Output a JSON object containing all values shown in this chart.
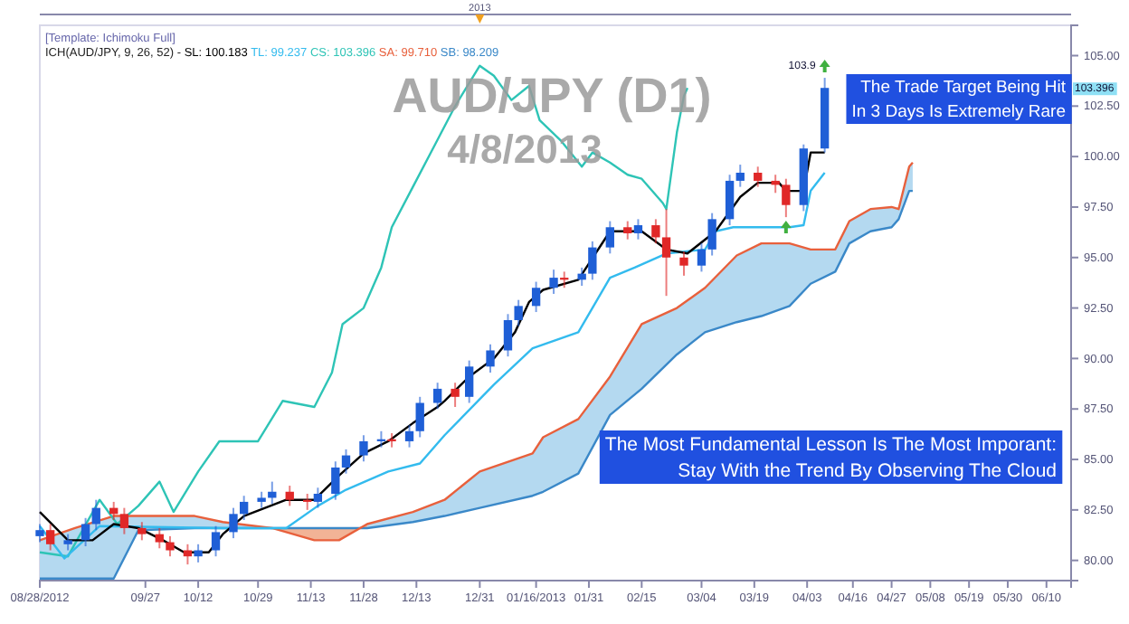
{
  "chart_data": {
    "type": "candlestick",
    "title": "AUD/JPY (D1)",
    "subtitle": "4/8/2013",
    "legend_title": "ICH(AUD/JPY, 9, 26, 52) -",
    "legend": "top left",
    "annotations": [
      "[Template: Ichimoku Full]",
      "2013",
      "The Trade Target Being Hit\nIn 3 Days Is Extremely Rare",
      "The Most Fundamental Lesson Is The Most Imporant:\nStay With the Trend By Observing The Cloud",
      "103.396",
      {
        "text": "103.9",
        "x": "2013-04-08",
        "y": 103.9
      }
    ],
    "xlim": [
      "2012-08-28",
      "2013-06-17"
    ],
    "xticks": [
      {
        "value": "2012-08-28",
        "label": "08/28/2012"
      },
      {
        "value": "2012-09-27",
        "label": "09/27"
      },
      {
        "value": "2012-10-12",
        "label": "10/12"
      },
      {
        "value": "2012-10-29",
        "label": "10/29"
      },
      {
        "value": "2012-11-13",
        "label": "11/13"
      },
      {
        "value": "2012-11-28",
        "label": "11/28"
      },
      {
        "value": "2012-12-13",
        "label": "12/13"
      },
      {
        "value": "2012-12-31",
        "label": "12/31"
      },
      {
        "value": "2013-01-16",
        "label": "01/16/2013"
      },
      {
        "value": "2013-01-31",
        "label": "01/31"
      },
      {
        "value": "2013-02-15",
        "label": "02/15"
      },
      {
        "value": "2013-03-04",
        "label": "03/04"
      },
      {
        "value": "2013-03-19",
        "label": "03/19"
      },
      {
        "value": "2013-04-03",
        "label": "04/03"
      },
      {
        "value": "2013-04-16",
        "label": "04/16"
      },
      {
        "value": "2013-04-27",
        "label": "04/27"
      },
      {
        "value": "2013-05-08",
        "label": "05/08"
      },
      {
        "value": "2013-05-19",
        "label": "05/19"
      },
      {
        "value": "2013-05-30",
        "label": "05/30"
      },
      {
        "value": "2013-06-10",
        "label": "06/10"
      }
    ],
    "ylim": [
      79,
      106.5
    ],
    "yticks": [
      {
        "value": 80,
        "label": "80.00"
      },
      {
        "value": 82.5,
        "label": "82.50"
      },
      {
        "value": 85,
        "label": "85.00"
      },
      {
        "value": 87.5,
        "label": "87.50"
      },
      {
        "value": 90,
        "label": "90.00"
      },
      {
        "value": 92.5,
        "label": "92.50"
      },
      {
        "value": 95,
        "label": "95.00"
      },
      {
        "value": 97.5,
        "label": "97.50"
      },
      {
        "value": 100,
        "label": "100.00"
      },
      {
        "value": 102.5,
        "label": "102.50"
      },
      {
        "value": 105,
        "label": "105.00"
      }
    ],
    "series": [
      {
        "type": "line",
        "name": "SB: 98.209",
        "color": "#3a88c8",
        "x": [
          "2012-08-28",
          "2012-09-07",
          "2012-09-18",
          "2012-09-25",
          "2012-10-11",
          "2012-10-19",
          "2012-11-02",
          "2012-11-14",
          "2012-11-21",
          "2012-11-29",
          "2012-12-12",
          "2012-12-21",
          "2012-12-31",
          "2013-01-15",
          "2013-01-18",
          "2013-01-28",
          "2013-02-06",
          "2013-02-15",
          "2013-02-25",
          "2013-03-05",
          "2013-03-14",
          "2013-03-21",
          "2013-03-29",
          "2013-04-04",
          "2013-04-11",
          "2013-04-15",
          "2013-04-21",
          "2013-04-27",
          "2013-04-29",
          "2013-05-02",
          "2013-05-03"
        ],
        "values": [
          79.1,
          79.1,
          79.1,
          81.5,
          81.6,
          81.6,
          81.6,
          81.6,
          81.6,
          81.6,
          81.9,
          82.2,
          82.6,
          83.2,
          83.4,
          84.3,
          87.2,
          88.5,
          90.2,
          91.3,
          91.8,
          92.1,
          92.6,
          93.7,
          94.3,
          95.7,
          96.3,
          96.5,
          96.9,
          98.3,
          98.3
        ]
      },
      {
        "type": "line",
        "name": "SA: 99.710",
        "color": "#e8603c",
        "x": [
          "2012-08-28",
          "2012-09-07",
          "2012-09-18",
          "2012-09-25",
          "2012-10-11",
          "2012-10-19",
          "2012-11-02",
          "2012-11-14",
          "2012-11-21",
          "2012-11-29",
          "2012-12-12",
          "2012-12-21",
          "2012-12-31",
          "2013-01-15",
          "2013-01-18",
          "2013-01-28",
          "2013-02-06",
          "2013-02-15",
          "2013-02-25",
          "2013-03-05",
          "2013-03-14",
          "2013-03-21",
          "2013-03-29",
          "2013-04-04",
          "2013-04-11",
          "2013-04-15",
          "2013-04-21",
          "2013-04-27",
          "2013-04-29",
          "2013-05-02",
          "2013-05-03"
        ],
        "values": [
          81.0,
          81.6,
          82.2,
          82.2,
          82.2,
          81.9,
          81.6,
          81.0,
          81.0,
          81.8,
          82.4,
          83.0,
          84.4,
          85.3,
          86.1,
          87.0,
          89.1,
          91.7,
          92.5,
          93.5,
          95.1,
          95.7,
          95.7,
          95.4,
          95.4,
          96.8,
          97.4,
          97.5,
          97.4,
          99.5,
          99.7
        ],
        "upper": [
          81.0,
          81.6,
          82.2,
          82.2,
          82.2,
          81.9,
          81.6,
          81.0,
          81.0,
          81.8,
          82.4,
          83.0,
          84.4,
          85.3,
          86.1,
          87.0,
          89.1,
          91.7,
          92.5,
          93.5,
          95.1,
          95.7,
          95.7,
          95.4,
          95.4,
          96.8,
          97.4,
          97.5,
          97.4,
          99.5,
          99.7
        ],
        "lower": [
          79.1,
          79.1,
          79.1,
          81.5,
          81.6,
          81.6,
          81.6,
          81.6,
          81.6,
          81.6,
          81.9,
          82.2,
          82.6,
          83.2,
          83.4,
          84.3,
          87.2,
          88.5,
          90.2,
          91.3,
          91.8,
          92.1,
          92.6,
          93.7,
          94.3,
          95.7,
          96.3,
          96.5,
          96.9,
          98.3,
          98.3
        ]
      },
      {
        "type": "line",
        "name": "CS: 103.396",
        "color": "#2ec4b6",
        "x": [
          "2012-08-28",
          "2012-09-05",
          "2012-09-14",
          "2012-09-19",
          "2012-09-25",
          "2012-10-01",
          "2012-10-05",
          "2012-10-12",
          "2012-10-18",
          "2012-10-23",
          "2012-10-29",
          "2012-11-05",
          "2012-11-14",
          "2012-11-19",
          "2012-11-22",
          "2012-11-28",
          "2012-12-03",
          "2012-12-06",
          "2012-12-12",
          "2012-12-18",
          "2012-12-24",
          "2012-12-31",
          "2013-01-04",
          "2013-01-09",
          "2013-01-14",
          "2013-01-17",
          "2013-01-23",
          "2013-01-29",
          "2013-02-01",
          "2013-02-06",
          "2013-02-11",
          "2013-02-15",
          "2013-02-21",
          "2013-02-22",
          "2013-02-25",
          "2013-02-27",
          "2013-02-28"
        ],
        "values": [
          80.4,
          80.2,
          83.0,
          81.8,
          82.7,
          83.9,
          82.4,
          84.4,
          85.9,
          85.9,
          85.9,
          87.9,
          87.6,
          89.3,
          91.7,
          92.5,
          94.5,
          96.5,
          98.5,
          100.5,
          102.5,
          104.5,
          104.0,
          102.8,
          103.5,
          101.8,
          100.8,
          99.5,
          100.2,
          99.7,
          99.1,
          98.9,
          97.7,
          97.4,
          101.2,
          103.0,
          103.4
        ]
      },
      {
        "type": "line",
        "name": "TL: 99.237",
        "color": "#33bbee",
        "x": [
          "2012-08-28",
          "2012-09-04",
          "2012-09-14",
          "2012-10-19",
          "2012-11-06",
          "2012-11-15",
          "2012-11-23",
          "2012-12-05",
          "2012-12-14",
          "2012-12-21",
          "2013-01-04",
          "2013-01-15",
          "2013-01-28",
          "2013-02-06",
          "2013-02-13",
          "2013-02-22",
          "2013-03-05",
          "2013-03-08",
          "2013-03-13",
          "2013-03-29",
          "2013-04-02",
          "2013-04-04",
          "2013-04-08"
        ],
        "values": [
          81.7,
          80.1,
          81.7,
          81.6,
          81.6,
          82.7,
          83.5,
          84.4,
          84.8,
          86.2,
          88.7,
          90.5,
          91.3,
          94.0,
          94.5,
          95.2,
          95.4,
          96.3,
          96.5,
          96.5,
          96.6,
          98.3,
          99.2
        ]
      },
      {
        "type": "line",
        "name": "SL: 100.183",
        "color": "#000000",
        "x": [
          "2012-08-28",
          "2012-09-05",
          "2012-09-12",
          "2012-09-18",
          "2012-09-25",
          "2012-10-02",
          "2012-10-08",
          "2012-10-15",
          "2012-10-19",
          "2012-10-25",
          "2012-11-06",
          "2012-11-14",
          "2012-11-21",
          "2012-11-28",
          "2012-12-05",
          "2012-12-12",
          "2012-12-19",
          "2012-12-21",
          "2012-12-28",
          "2013-01-04",
          "2013-01-10",
          "2013-01-14",
          "2013-01-18",
          "2013-01-28",
          "2013-02-06",
          "2013-02-15",
          "2013-02-22",
          "2013-02-28",
          "2013-03-08",
          "2013-03-15",
          "2013-03-20",
          "2013-03-26",
          "2013-03-28",
          "2013-04-02",
          "2013-04-04",
          "2013-04-08"
        ],
        "values": [
          82.4,
          81.0,
          81.0,
          81.8,
          81.6,
          81.0,
          80.4,
          80.4,
          81.3,
          82.2,
          83.0,
          83.0,
          84.2,
          85.3,
          85.9,
          86.8,
          87.6,
          87.9,
          89.1,
          90.0,
          91.3,
          92.8,
          93.4,
          93.9,
          96.3,
          96.3,
          95.4,
          95.2,
          96.3,
          98.0,
          98.7,
          98.7,
          98.3,
          98.3,
          100.2,
          100.2
        ]
      },
      {
        "type": "candlestick",
        "x": [
          "2012-08-28",
          "2012-08-31",
          "2012-09-05",
          "2012-09-10",
          "2012-09-13",
          "2012-09-18",
          "2012-09-21",
          "2012-09-26",
          "2012-10-01",
          "2012-10-04",
          "2012-10-09",
          "2012-10-12",
          "2012-10-17",
          "2012-10-22",
          "2012-10-25",
          "2012-10-30",
          "2012-11-02",
          "2012-11-07",
          "2012-11-12",
          "2012-11-15",
          "2012-11-20",
          "2012-11-23",
          "2012-11-28",
          "2012-12-03",
          "2012-12-06",
          "2012-12-11",
          "2012-12-14",
          "2012-12-19",
          "2012-12-24",
          "2012-12-28",
          "2013-01-03",
          "2013-01-08",
          "2013-01-11",
          "2013-01-16",
          "2013-01-21",
          "2013-01-24",
          "2013-01-29",
          "2013-02-01",
          "2013-02-06",
          "2013-02-11",
          "2013-02-14",
          "2013-02-19",
          "2013-02-22",
          "2013-02-27",
          "2013-03-04",
          "2013-03-07",
          "2013-03-12",
          "2013-03-15",
          "2013-03-20",
          "2013-03-25",
          "2013-03-28",
          "2013-04-02",
          "2013-04-08"
        ],
        "ohlc": [
          [
            81.2,
            81.8,
            80.9,
            81.5
          ],
          [
            81.5,
            81.8,
            80.5,
            80.8
          ],
          [
            80.8,
            81.3,
            80.5,
            81.0
          ],
          [
            81.0,
            82.1,
            80.7,
            81.8
          ],
          [
            81.8,
            83.0,
            81.5,
            82.6
          ],
          [
            82.6,
            82.9,
            82.0,
            82.3
          ],
          [
            82.3,
            82.6,
            81.3,
            81.6
          ],
          [
            81.6,
            81.9,
            81.0,
            81.3
          ],
          [
            81.3,
            81.6,
            80.6,
            80.9
          ],
          [
            80.9,
            81.2,
            80.2,
            80.5
          ],
          [
            80.5,
            80.8,
            79.8,
            80.2
          ],
          [
            80.2,
            80.8,
            79.9,
            80.5
          ],
          [
            80.5,
            81.7,
            80.2,
            81.4
          ],
          [
            81.4,
            82.6,
            81.1,
            82.3
          ],
          [
            82.3,
            83.2,
            82.0,
            82.9
          ],
          [
            82.9,
            83.4,
            82.6,
            83.1
          ],
          [
            83.1,
            83.9,
            82.8,
            83.4
          ],
          [
            83.4,
            83.7,
            82.7,
            83.0
          ],
          [
            83.0,
            83.3,
            82.5,
            82.9
          ],
          [
            82.9,
            83.6,
            82.6,
            83.3
          ],
          [
            83.3,
            84.9,
            83.0,
            84.6
          ],
          [
            84.6,
            85.5,
            84.3,
            85.2
          ],
          [
            85.2,
            86.2,
            84.9,
            85.9
          ],
          [
            85.9,
            86.4,
            85.6,
            86.0
          ],
          [
            86.0,
            86.3,
            85.6,
            85.9
          ],
          [
            85.9,
            86.7,
            85.6,
            86.4
          ],
          [
            86.4,
            88.1,
            86.1,
            87.8
          ],
          [
            87.8,
            88.8,
            87.5,
            88.5
          ],
          [
            88.5,
            88.8,
            87.6,
            88.1
          ],
          [
            88.1,
            89.9,
            87.8,
            89.6
          ],
          [
            89.6,
            90.7,
            89.3,
            90.4
          ],
          [
            90.4,
            92.2,
            90.1,
            91.9
          ],
          [
            91.9,
            92.9,
            91.6,
            92.6
          ],
          [
            92.6,
            93.8,
            92.3,
            93.5
          ],
          [
            93.5,
            94.4,
            93.2,
            94.0
          ],
          [
            94.0,
            94.3,
            93.5,
            93.9
          ],
          [
            93.9,
            94.5,
            93.6,
            94.2
          ],
          [
            94.2,
            95.8,
            93.9,
            95.5
          ],
          [
            95.5,
            96.8,
            95.2,
            96.5
          ],
          [
            96.5,
            96.8,
            95.9,
            96.2
          ],
          [
            96.2,
            96.9,
            95.9,
            96.6
          ],
          [
            96.6,
            96.9,
            95.7,
            96.0
          ],
          [
            96.0,
            97.4,
            93.1,
            95.0
          ],
          [
            95.0,
            95.3,
            94.1,
            94.6
          ],
          [
            94.6,
            95.7,
            94.3,
            95.4
          ],
          [
            95.4,
            97.2,
            95.1,
            96.9
          ],
          [
            96.9,
            99.1,
            96.6,
            98.8
          ],
          [
            98.8,
            99.6,
            98.5,
            99.2
          ],
          [
            99.2,
            99.5,
            98.5,
            98.8
          ],
          [
            98.8,
            99.1,
            98.2,
            98.6
          ],
          [
            98.6,
            98.9,
            97.0,
            97.6
          ],
          [
            97.6,
            100.6,
            97.3,
            100.4
          ],
          [
            100.4,
            103.9,
            100.2,
            103.4
          ]
        ]
      }
    ]
  }
}
